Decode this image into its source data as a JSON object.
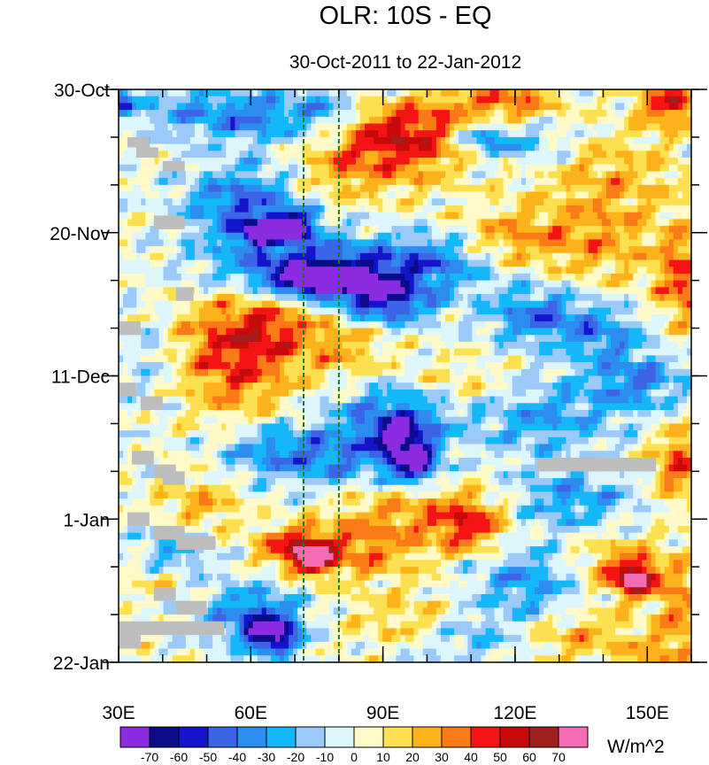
{
  "chart_data": {
    "type": "heatmap",
    "title": "OLR: 10S - EQ",
    "subtitle": "30-Oct-2011 to 22-Jan-2012",
    "x_axis": {
      "range": [
        30,
        160
      ],
      "ticks": [
        30,
        60,
        90,
        120,
        150
      ],
      "tick_labels": [
        "30E",
        "60E",
        "90E",
        "120E",
        "150E"
      ],
      "minor_step": 10
    },
    "y_axis": {
      "range_days": [
        0,
        84
      ],
      "ticks": [
        0,
        21,
        42,
        63,
        84
      ],
      "tick_labels": [
        "30-Oct",
        "20-Nov",
        "11-Dec",
        "1-Jan",
        "22-Jan"
      ],
      "minor_step_days": 7,
      "direction": "time increases downward"
    },
    "reference_lines": {
      "style": "dashed",
      "color": "#1a7a1a",
      "longitudes": [
        72,
        80
      ]
    },
    "missing_color": "#bdbdbd",
    "missing_segments": [
      {
        "lon": [
          32,
          37
        ],
        "day": [
          7,
          8.5
        ]
      },
      {
        "lon": [
          34,
          39
        ],
        "day": [
          8.5,
          10
        ]
      },
      {
        "lon": [
          40,
          45
        ],
        "day": [
          10.5,
          12
        ]
      },
      {
        "lon": [
          38,
          45
        ],
        "day": [
          18.5,
          20.5
        ]
      },
      {
        "lon": [
          43,
          47
        ],
        "day": [
          29,
          31
        ]
      },
      {
        "lon": [
          30,
          35
        ],
        "day": [
          34,
          36
        ]
      },
      {
        "lon": [
          30,
          34
        ],
        "day": [
          43,
          45
        ]
      },
      {
        "lon": [
          35,
          40
        ],
        "day": [
          45,
          47
        ]
      },
      {
        "lon": [
          33,
          38
        ],
        "day": [
          53,
          55
        ]
      },
      {
        "lon": [
          38,
          43
        ],
        "day": [
          55,
          57
        ]
      },
      {
        "lon": [
          40,
          45
        ],
        "day": [
          56,
          58
        ]
      },
      {
        "lon": [
          32,
          37
        ],
        "day": [
          62,
          64
        ]
      },
      {
        "lon": [
          38,
          45
        ],
        "day": [
          64,
          66
        ]
      },
      {
        "lon": [
          43,
          52
        ],
        "day": [
          65.5,
          67.5
        ]
      },
      {
        "lon": [
          38,
          43
        ],
        "day": [
          73,
          75
        ]
      },
      {
        "lon": [
          43,
          50
        ],
        "day": [
          75,
          77
        ]
      },
      {
        "lon": [
          30,
          54
        ],
        "day": [
          78,
          80
        ]
      },
      {
        "lon": [
          30,
          35
        ],
        "day": [
          80,
          82
        ]
      },
      {
        "lon": [
          125,
          152
        ],
        "day": [
          54,
          56
        ]
      }
    ],
    "anomaly_features": [
      {
        "lon": 31,
        "day": 2,
        "s_lon": 2,
        "s_day": 1.5,
        "amp": -40
      },
      {
        "lon": 45,
        "day": 3,
        "s_lon": 9,
        "s_day": 3,
        "amp": -25
      },
      {
        "lon": 62,
        "day": 4,
        "s_lon": 8,
        "s_day": 2.5,
        "amp": -35
      },
      {
        "lon": 78,
        "day": 3,
        "s_lon": 6,
        "s_day": 3,
        "amp": -30
      },
      {
        "lon": 88,
        "day": 6,
        "s_lon": 10,
        "s_day": 3,
        "amp": 30
      },
      {
        "lon": 95,
        "day": 10,
        "s_lon": 8,
        "s_day": 4,
        "amp": 25
      },
      {
        "lon": 80,
        "day": 12,
        "s_lon": 7,
        "s_day": 3,
        "amp": 25
      },
      {
        "lon": 106,
        "day": 5,
        "s_lon": 10,
        "s_day": 4,
        "amp": 25
      },
      {
        "lon": 120,
        "day": 2,
        "s_lon": 8,
        "s_day": 2.5,
        "amp": 30
      },
      {
        "lon": 113,
        "day": 7,
        "s_lon": 5,
        "s_day": 2,
        "amp": -50
      },
      {
        "lon": 125,
        "day": 8,
        "s_lon": 6,
        "s_day": 3,
        "amp": -25
      },
      {
        "lon": 155,
        "day": 2,
        "s_lon": 5,
        "s_day": 2.5,
        "amp": 50
      },
      {
        "lon": 140,
        "day": 12,
        "s_lon": 14,
        "s_day": 4,
        "amp": 20
      },
      {
        "lon": 58,
        "day": 17,
        "s_lon": 9,
        "s_day": 4,
        "amp": -45
      },
      {
        "lon": 69,
        "day": 20,
        "s_lon": 4,
        "s_day": 1.5,
        "amp": -70
      },
      {
        "lon": 62,
        "day": 21,
        "s_lon": 3,
        "s_day": 1,
        "amp": -70
      },
      {
        "lon": 74,
        "day": 26,
        "s_lon": 15,
        "s_day": 3,
        "amp": -55
      },
      {
        "lon": 76,
        "day": 28,
        "s_lon": 7,
        "s_day": 1.5,
        "amp": -75
      },
      {
        "lon": 90,
        "day": 31,
        "s_lon": 8,
        "s_day": 2.5,
        "amp": -60
      },
      {
        "lon": 103,
        "day": 25,
        "s_lon": 10,
        "s_day": 3,
        "amp": -35
      },
      {
        "lon": 118,
        "day": 22,
        "s_lon": 9,
        "s_day": 3,
        "amp": 30
      },
      {
        "lon": 140,
        "day": 22,
        "s_lon": 10,
        "s_day": 5,
        "amp": 25
      },
      {
        "lon": 158,
        "day": 28,
        "s_lon": 4,
        "s_day": 5,
        "amp": 40
      },
      {
        "lon": 125,
        "day": 33,
        "s_lon": 8,
        "s_day": 3,
        "amp": -40
      },
      {
        "lon": 140,
        "day": 36,
        "s_lon": 7,
        "s_day": 3,
        "amp": -30
      },
      {
        "lon": 56,
        "day": 36,
        "s_lon": 14,
        "s_day": 5,
        "amp": 30
      },
      {
        "lon": 64,
        "day": 35,
        "s_lon": 7,
        "s_day": 3,
        "amp": 20
      },
      {
        "lon": 57,
        "day": 43,
        "s_lon": 9,
        "s_day": 5,
        "amp": 25
      },
      {
        "lon": 82,
        "day": 37,
        "s_lon": 7,
        "s_day": 4,
        "amp": 20
      },
      {
        "lon": 37,
        "day": 38,
        "s_lon": 6,
        "s_day": 5,
        "amp": -20
      },
      {
        "lon": 93,
        "day": 47,
        "s_lon": 10,
        "s_day": 3,
        "amp": -40
      },
      {
        "lon": 94,
        "day": 51,
        "s_lon": 5,
        "s_day": 2,
        "amp": -55
      },
      {
        "lon": 97,
        "day": 55,
        "s_lon": 4,
        "s_day": 2,
        "amp": -70
      },
      {
        "lon": 80,
        "day": 54,
        "s_lon": 9,
        "s_day": 3,
        "amp": -35
      },
      {
        "lon": 64,
        "day": 53,
        "s_lon": 8,
        "s_day": 3,
        "amp": -30
      },
      {
        "lon": 108,
        "day": 44,
        "s_lon": 10,
        "s_day": 3,
        "amp": 20
      },
      {
        "lon": 125,
        "day": 48,
        "s_lon": 12,
        "s_day": 4,
        "amp": -30
      },
      {
        "lon": 148,
        "day": 43,
        "s_lon": 8,
        "s_day": 3,
        "amp": -35
      },
      {
        "lon": 157,
        "day": 55,
        "s_lon": 4,
        "s_day": 4,
        "amp": 40
      },
      {
        "lon": 133,
        "day": 60,
        "s_lon": 10,
        "s_day": 3,
        "amp": -30
      },
      {
        "lon": 48,
        "day": 61,
        "s_lon": 7,
        "s_day": 3,
        "amp": 25
      },
      {
        "lon": 95,
        "day": 62,
        "s_lon": 12,
        "s_day": 3,
        "amp": 25
      },
      {
        "lon": 110,
        "day": 64,
        "s_lon": 6,
        "s_day": 3,
        "amp": 40
      },
      {
        "lon": 70,
        "day": 67,
        "s_lon": 6,
        "s_day": 2,
        "amp": 45
      },
      {
        "lon": 74,
        "day": 69,
        "s_lon": 3,
        "s_day": 1.5,
        "amp": 55
      },
      {
        "lon": 85,
        "day": 68,
        "s_lon": 10,
        "s_day": 3,
        "amp": 30
      },
      {
        "lon": 43,
        "day": 68,
        "s_lon": 6,
        "s_day": 3,
        "amp": -30
      },
      {
        "lon": 125,
        "day": 72,
        "s_lon": 10,
        "s_day": 4,
        "amp": -35
      },
      {
        "lon": 143,
        "day": 70,
        "s_lon": 10,
        "s_day": 3,
        "amp": 35
      },
      {
        "lon": 147,
        "day": 72,
        "s_lon": 3,
        "s_day": 1.5,
        "amp": 70
      },
      {
        "lon": 158,
        "day": 77,
        "s_lon": 4,
        "s_day": 4,
        "amp": 30
      },
      {
        "lon": 60,
        "day": 77,
        "s_lon": 8,
        "s_day": 3,
        "amp": -40
      },
      {
        "lon": 65,
        "day": 80,
        "s_lon": 4,
        "s_day": 2,
        "amp": -70
      },
      {
        "lon": 97,
        "day": 78,
        "s_lon": 10,
        "s_day": 3,
        "amp": 25
      },
      {
        "lon": 40,
        "day": 72,
        "s_lon": 6,
        "s_day": 2,
        "amp": 20
      },
      {
        "lon": 108,
        "day": 80,
        "s_lon": 10,
        "s_day": 3,
        "amp": -25
      },
      {
        "lon": 135,
        "day": 80,
        "s_lon": 10,
        "s_day": 3,
        "amp": 25
      },
      {
        "lon": 152,
        "day": 83,
        "s_lon": 5,
        "s_day": 2,
        "amp": 20
      }
    ],
    "colorbar": {
      "levels": [
        -70,
        -60,
        -50,
        -40,
        -30,
        -20,
        -10,
        0,
        10,
        20,
        30,
        40,
        50,
        60,
        70
      ],
      "level_labels": [
        "-70",
        "-60",
        "-50",
        "-40",
        "-30",
        "-20",
        "-10",
        "0",
        "10",
        "20",
        "30",
        "40",
        "50",
        "60",
        "70"
      ],
      "colors": [
        "#8b2be2",
        "#0c0c8a",
        "#1414cc",
        "#3c64e6",
        "#2c8cf0",
        "#14b8f8",
        "#9ccaf8",
        "#dcf6fc",
        "#fffac8",
        "#fde050",
        "#fdb21c",
        "#fb7a18",
        "#f51414",
        "#c60a0a",
        "#a01e1e",
        "#f56cb4"
      ],
      "units": "W/m^2"
    }
  }
}
